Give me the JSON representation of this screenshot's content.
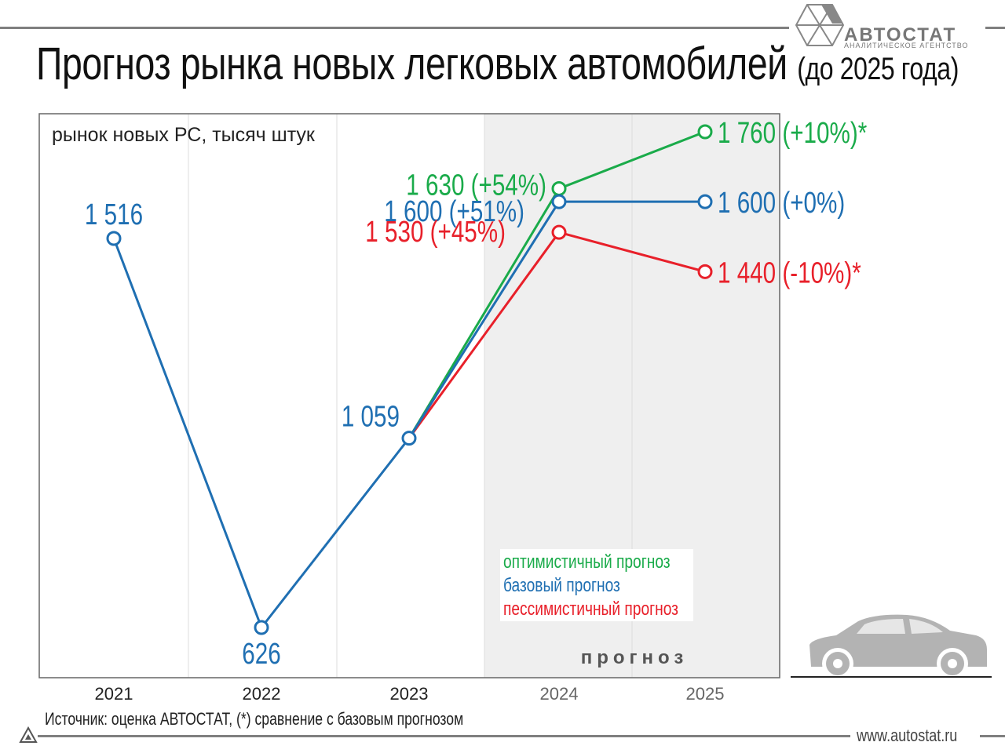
{
  "header": {
    "title": "Прогноз рынка новых легковых автомобилей",
    "title_suffix": "(до 2025 года)",
    "logo_name": "АВТОСТАТ",
    "logo_tagline": "АНАЛИТИЧЕСКОЕ АГЕНТСТВО"
  },
  "footer": {
    "source": "Источник: оценка АВТОСТАТ, (*) сравнение с базовым прогнозом",
    "website": "www.autostat.ru"
  },
  "chart_data": {
    "type": "line",
    "ylabel": "рынок новых РС, тысяч штук",
    "categories": [
      "2021",
      "2022",
      "2023",
      "2024",
      "2025"
    ],
    "ylim": [
      0,
      2000
    ],
    "forecast_label": "прогноз",
    "forecast_start_category": "2024",
    "grid": true,
    "legend_position": "bottom-right",
    "series": [
      {
        "name": "",
        "color": "#1f6fb2",
        "x": [
          "2021",
          "2022",
          "2023"
        ],
        "values": [
          1516,
          626,
          1059
        ],
        "labels": [
          "1 516",
          "626",
          "1 059"
        ]
      },
      {
        "name": "оптимистичный прогноз",
        "color": "#1aab4a",
        "x": [
          "2023",
          "2024",
          "2025"
        ],
        "values": [
          1059,
          1630,
          1760
        ],
        "labels": [
          "",
          "1 630 (+54%)",
          "1 760 (+10%)*"
        ]
      },
      {
        "name": "базовый прогноз",
        "color": "#1f6fb2",
        "x": [
          "2023",
          "2024",
          "2025"
        ],
        "values": [
          1059,
          1600,
          1600
        ],
        "labels": [
          "",
          "1 600 (+51%)",
          "1 600 (+0%)"
        ]
      },
      {
        "name": "пессимистичный прогноз",
        "color": "#e8202a",
        "x": [
          "2023",
          "2024",
          "2025"
        ],
        "values": [
          1059,
          1530,
          1440
        ],
        "labels": [
          "",
          "1 530 (+45%)",
          "1 440 (-10%)*"
        ]
      }
    ]
  }
}
